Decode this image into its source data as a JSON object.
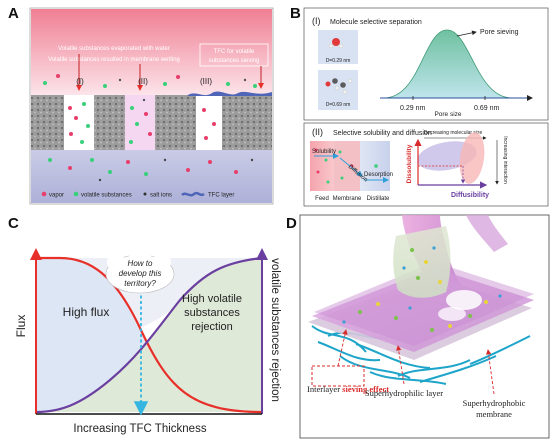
{
  "panel_a": {
    "letter": "A",
    "evaporated": "Volatile substances evaporated with water",
    "wetting": "Volatile substances resulted in membrane wetting",
    "tfc_note_line1": "TFC for volatile",
    "tfc_note_line2": "substances sieving",
    "case1": "(I)",
    "case2": "(II)",
    "case3": "(III)",
    "legend_vapor": "vapor",
    "legend_volatile": "volatile substances",
    "legend_salt": "salt ions",
    "legend_tfc": "TFC layer"
  },
  "panel_b": {
    "letter": "B",
    "part1_label": "(I)",
    "part1_title": "Molecule selective separation",
    "d1": "D=0.29 nm",
    "d2": "D=0.69 nm",
    "pore_sieving": "Pore sieving",
    "tick1": "0.29 nm",
    "tick2": "0.69 nm",
    "pore_size": "Pore size",
    "part2_label": "(II)",
    "part2_title": "Selective solubility and diffusion",
    "solubility": "Solubility",
    "diffusion": "Diffusion",
    "desorption": "Desorption",
    "feed": "Feed",
    "membrane": "Membrane",
    "distillate": "Distillate",
    "decreasing_size": "Decreasing molecular size",
    "increasing_interaction": "Increasing interaction",
    "dissolubility": "Dissolubility",
    "diffusibility": "Diffusibility"
  },
  "panel_c": {
    "letter": "C",
    "y_left": "Flux",
    "y_right": "volatile substances rejection",
    "x_label": "Increasing TFC Thickness",
    "high_flux": "High flux",
    "rejection_line1": "High volatile",
    "rejection_line2": "substances",
    "rejection_line3": "rejection",
    "question_line1": "How to",
    "question_line2": "develop this",
    "question_line3": "territory?",
    "colors": {
      "flux": "#e8302a",
      "rejection": "#6a3fa0",
      "arrow": "#35b6e0"
    }
  },
  "panel_d": {
    "letter": "D",
    "interlayer": "Interlayer",
    "sieving_effect": "sieving effect",
    "superhydrophilic": "Superhydrophilic layer",
    "superhydrophobic_line1": "Superhydrophobic",
    "superhydrophobic_line2": "membrane"
  }
}
